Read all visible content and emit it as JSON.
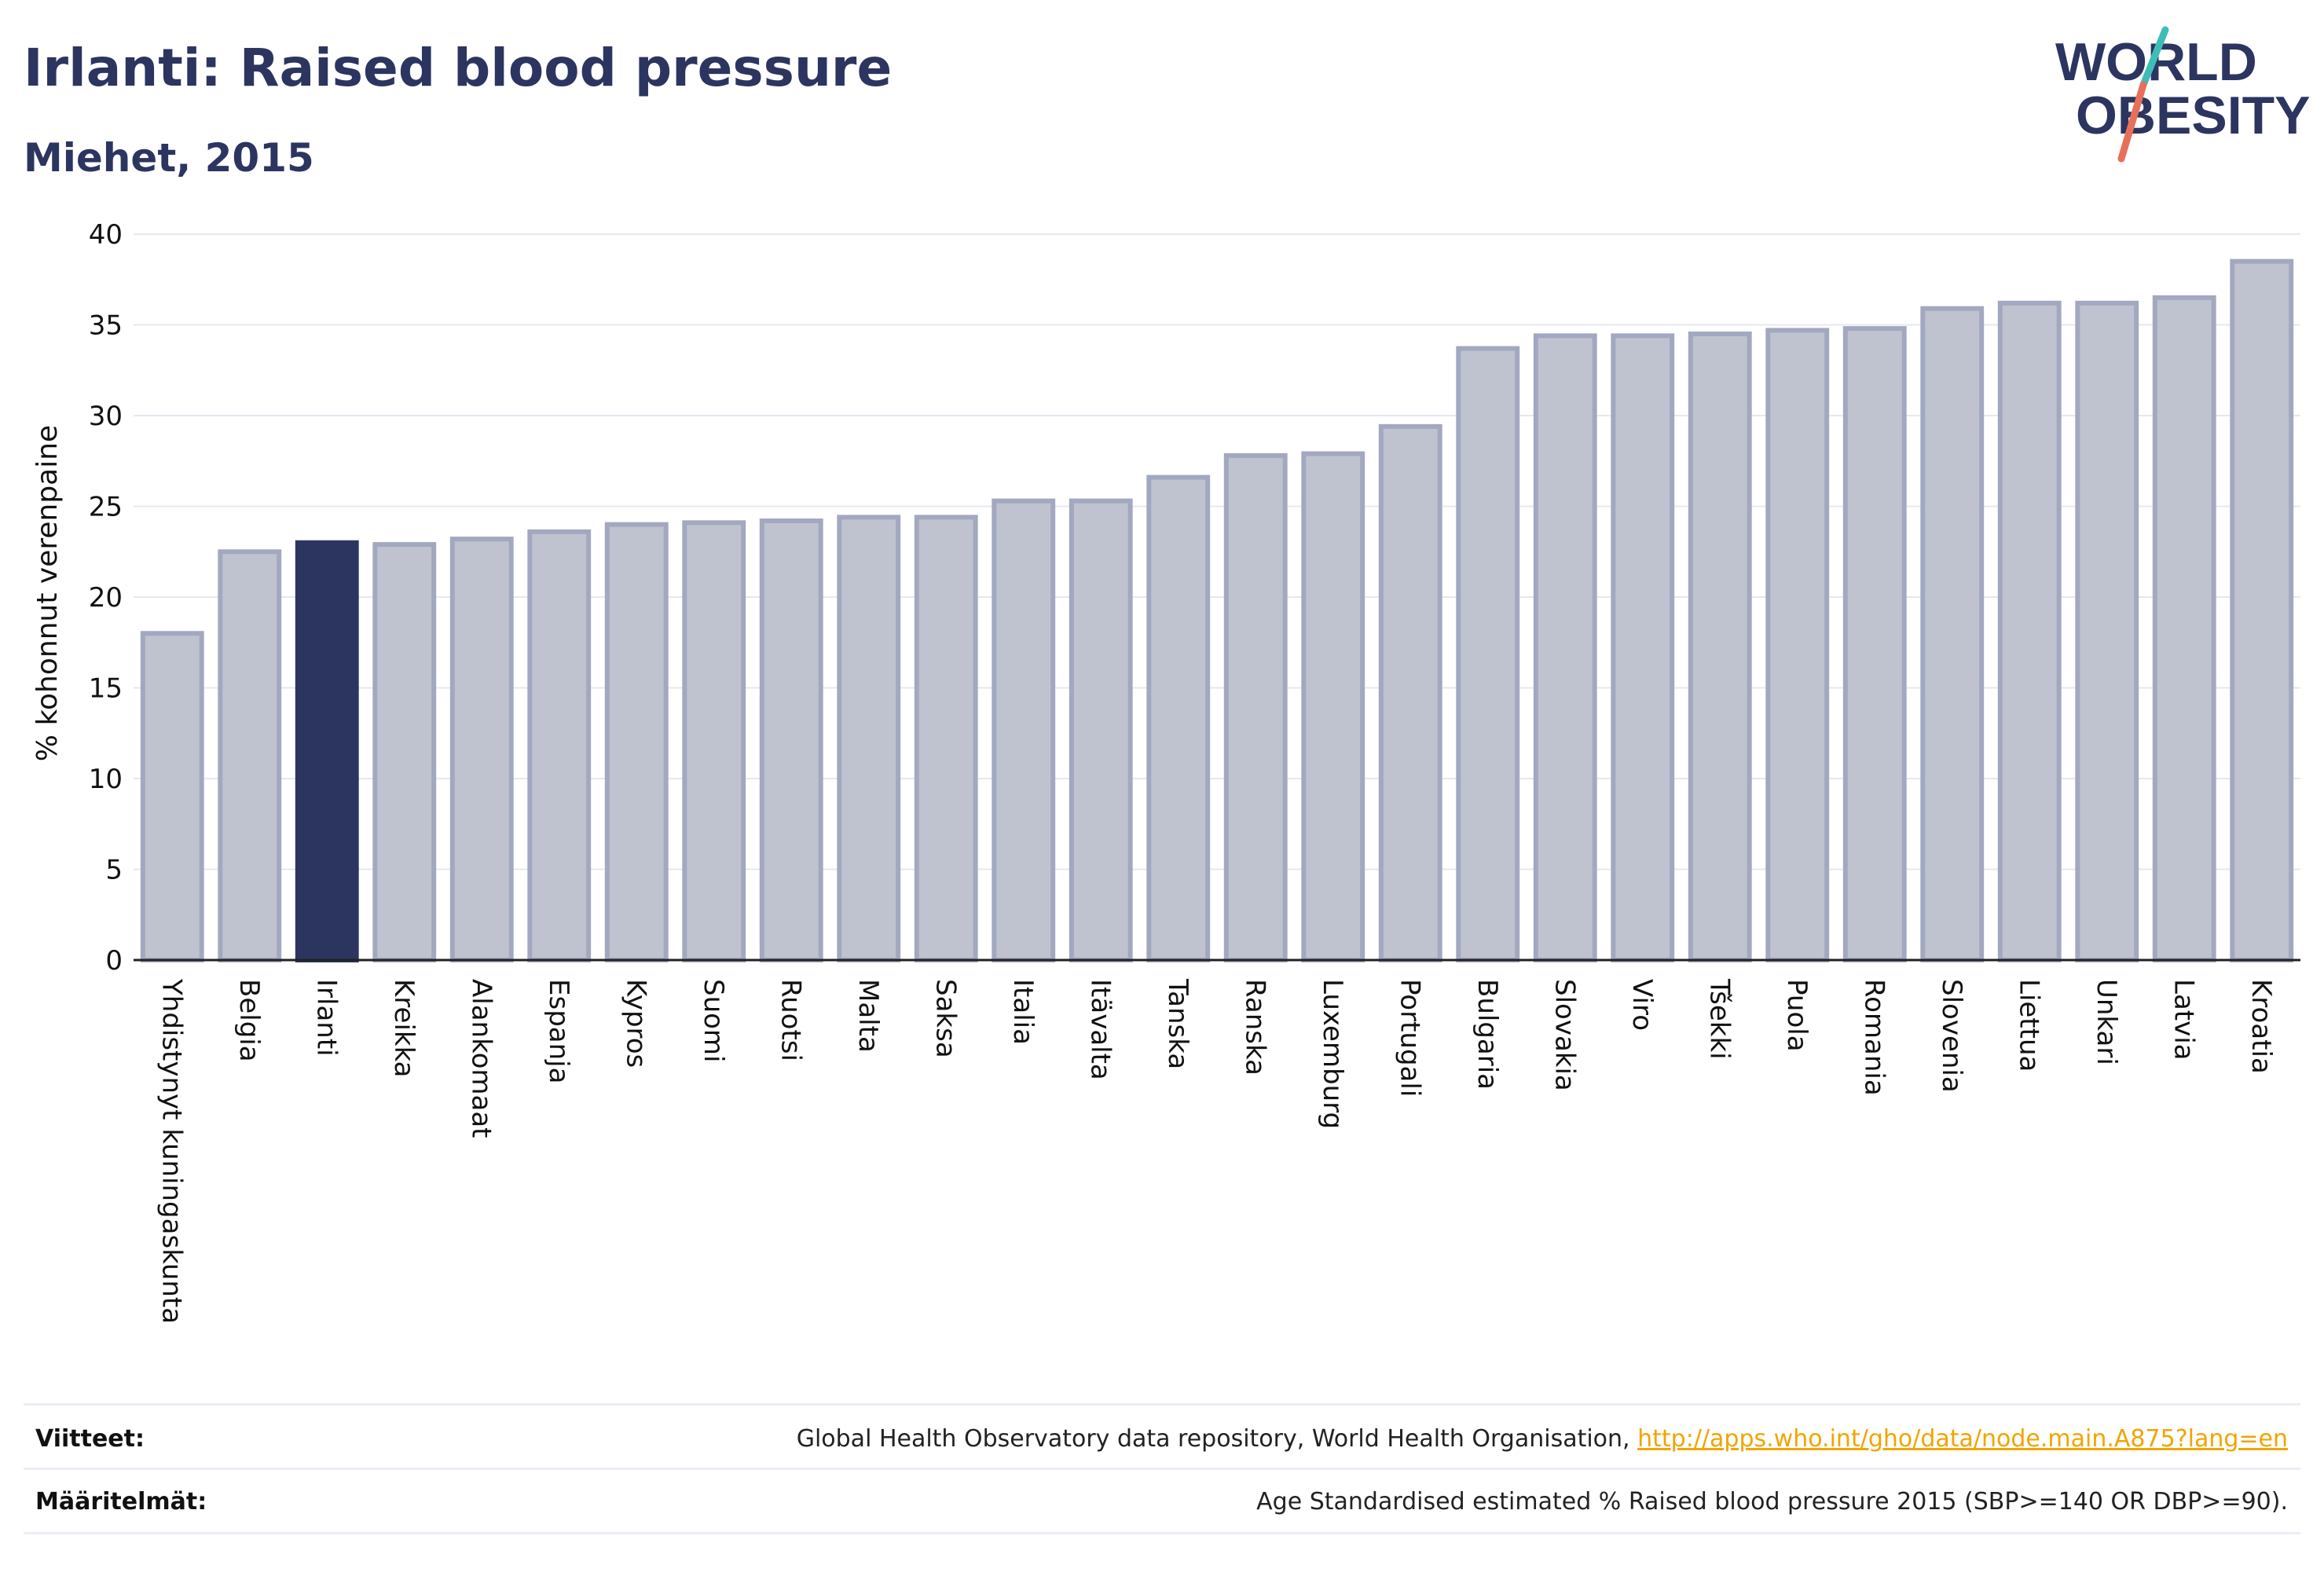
{
  "header": {
    "title": "Irlanti: Raised blood pressure",
    "subtitle": "Miehet, 2015"
  },
  "logo": {
    "line1": "WORLD",
    "line2": "OBESITY",
    "colors": {
      "text": "#2b3560",
      "slash_teal": "#3ebdb8",
      "slash_coral": "#e8705a"
    }
  },
  "chart_data": {
    "type": "bar",
    "ylabel": "% kohonnut verenpaine",
    "ylim": [
      0,
      40
    ],
    "yticks": [
      0,
      5,
      10,
      15,
      20,
      25,
      30,
      35,
      40
    ],
    "grid": true,
    "highlight": "Irlanti",
    "colors": {
      "bar": "#bfc3d0",
      "bar_border": "#a2a8bf",
      "highlight": "#2b3560",
      "grid": "#e6e8f0"
    },
    "categories": [
      "Yhdistynyt kuningaskunta",
      "Belgia",
      "Irlanti",
      "Kreikka",
      "Alankomaat",
      "Espanja",
      "Kypros",
      "Suomi",
      "Ruotsi",
      "Malta",
      "Saksa",
      "Italia",
      "Itävalta",
      "Tanska",
      "Ranska",
      "Luxemburg",
      "Portugali",
      "Bulgaria",
      "Slovakia",
      "Viro",
      "Tšekki",
      "Puola",
      "Romania",
      "Slovenia",
      "Liettua",
      "Unkari",
      "Latvia",
      "Kroatia"
    ],
    "values": [
      18.0,
      22.5,
      23.0,
      22.9,
      23.2,
      23.6,
      24.0,
      24.1,
      24.2,
      24.4,
      24.4,
      25.3,
      25.3,
      26.6,
      27.8,
      27.9,
      29.4,
      33.7,
      34.4,
      34.4,
      34.5,
      34.7,
      34.8,
      35.9,
      36.2,
      36.2,
      36.5,
      38.5
    ]
  },
  "footer": {
    "references_label": "Viitteet:",
    "references_text": "Global Health Observatory data repository, World Health Organisation,",
    "references_link": "http://apps.who.int/gho/data/node.main.A875?lang=en",
    "definitions_label": "Määritelmät:",
    "definitions_text": "Age Standardised estimated % Raised blood pressure 2015 (SBP>=140 OR DBP>=90)."
  }
}
